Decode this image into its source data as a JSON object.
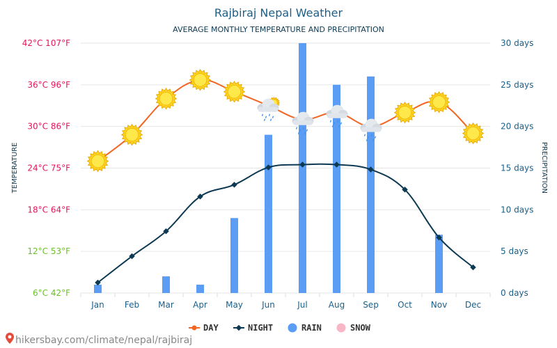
{
  "chart_data": {
    "type": "line",
    "title": "Rajbiraj Nepal Weather",
    "subtitle": "AVERAGE MONTHLY TEMPERATURE AND PRECIPITATION",
    "ylabel_left": "TEMPERATURE",
    "ylabel_right": "PRECIPITATION",
    "categories": [
      "Jan",
      "Feb",
      "Mar",
      "Apr",
      "May",
      "Jun",
      "Jul",
      "Aug",
      "Sep",
      "Oct",
      "Nov",
      "Dec"
    ],
    "left_axis": {
      "min": 6,
      "max": 42,
      "ticks": [
        {
          "value": 42,
          "label": "42°C 107°F"
        },
        {
          "value": 36,
          "label": "36°C 96°F"
        },
        {
          "value": 30,
          "label": "30°C 86°F"
        },
        {
          "value": 24,
          "label": "24°C 75°F"
        },
        {
          "value": 18,
          "label": "18°C 64°F"
        },
        {
          "value": 12,
          "label": "12°C 53°F"
        },
        {
          "value": 6,
          "label": "6°C 42°F"
        }
      ]
    },
    "right_axis": {
      "min": 0,
      "max": 30,
      "ticks": [
        {
          "value": 30,
          "label": "30 days"
        },
        {
          "value": 25,
          "label": "25 days"
        },
        {
          "value": 20,
          "label": "20 days"
        },
        {
          "value": 15,
          "label": "15 days"
        },
        {
          "value": 10,
          "label": "10 days"
        },
        {
          "value": 5,
          "label": "5 days"
        },
        {
          "value": 0,
          "label": "0 days"
        }
      ]
    },
    "series": [
      {
        "name": "DAY",
        "type": "line",
        "axis": "left",
        "color": "#f26522",
        "values": [
          25,
          28.8,
          34,
          36.7,
          35,
          33,
          31,
          32,
          30,
          32,
          33.5,
          29
        ]
      },
      {
        "name": "NIGHT",
        "type": "line",
        "axis": "left",
        "color": "#0d3a52",
        "values": [
          7.5,
          11.3,
          14.9,
          19.9,
          21.6,
          24.1,
          24.5,
          24.5,
          23.8,
          20.9,
          14,
          9.7
        ]
      },
      {
        "name": "RAIN",
        "type": "bar",
        "axis": "right",
        "color": "#5b9cf5",
        "values": [
          1,
          0,
          2,
          1,
          9,
          19,
          30,
          25,
          26,
          0,
          7,
          0
        ]
      },
      {
        "name": "SNOW",
        "type": "bar",
        "axis": "right",
        "color": "#f7b7c6",
        "values": [
          0,
          0,
          0,
          0,
          0,
          0,
          0,
          0,
          0,
          0,
          0,
          0
        ]
      }
    ],
    "weather_icons": [
      "sunny",
      "sunny",
      "sunny",
      "sunny",
      "sunny",
      "sun-rain-cloud",
      "rain-cloud",
      "rain-cloud",
      "rain-cloud",
      "sunny",
      "sunny",
      "sunny"
    ],
    "legend": {
      "placement": "bottom-center",
      "items": [
        "DAY",
        "NIGHT",
        "RAIN",
        "SNOW"
      ]
    },
    "grid": true
  },
  "colors": {
    "title": "#1a5f8a",
    "left_axis_warm": "#e3165b",
    "left_axis_cool": "#6cbf2a",
    "right_axis": "#1a5f8a",
    "x_axis": "#1a5f8a",
    "grid": "#e6e6e6",
    "footer_icon": "#e64a3a"
  },
  "footer": {
    "url": "hikersbay.com/climate/nepal/rajbiraj"
  }
}
